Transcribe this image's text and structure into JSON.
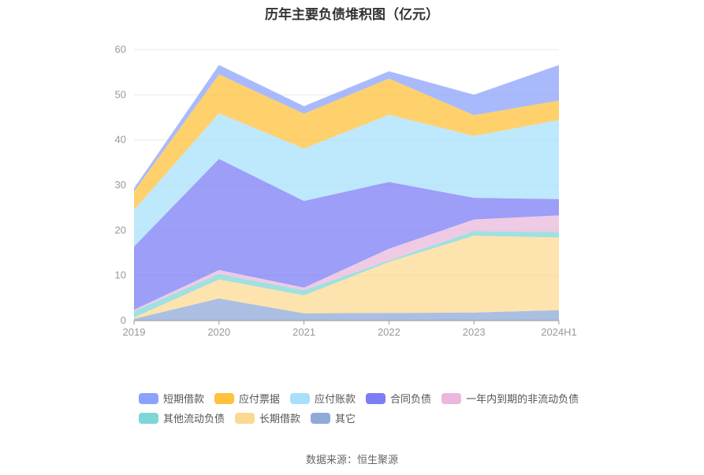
{
  "chart_data": {
    "type": "area",
    "stacked": true,
    "title": "历年主要负债堆积图（亿元）",
    "categories": [
      "2019",
      "2020",
      "2021",
      "2022",
      "2023",
      "2024H1"
    ],
    "ylim": [
      0,
      60
    ],
    "yticks": [
      0,
      10,
      20,
      30,
      40,
      50,
      60
    ],
    "grid": true,
    "legend_position": "bottom",
    "series": [
      {
        "name": "其它",
        "color": "#8fa9d9",
        "values": [
          0.4,
          4.9,
          1.6,
          1.7,
          1.8,
          2.3
        ]
      },
      {
        "name": "长期借款",
        "color": "#fcd991",
        "values": [
          0.3,
          4.2,
          4.0,
          11.3,
          17.0,
          16.1
        ]
      },
      {
        "name": "其他流动负债",
        "color": "#7fd6d6",
        "values": [
          1.4,
          1.2,
          1.1,
          0.3,
          1.0,
          1.2
        ]
      },
      {
        "name": "一年内到期的非流动负债",
        "color": "#eab8dc",
        "values": [
          0.3,
          0.9,
          0.6,
          2.6,
          2.6,
          3.7
        ]
      },
      {
        "name": "合同负债",
        "color": "#7b7ef5",
        "values": [
          14.0,
          24.6,
          19.2,
          14.8,
          4.8,
          3.6
        ]
      },
      {
        "name": "应付账款",
        "color": "#a8e0fb",
        "values": [
          8.1,
          10.1,
          11.6,
          14.9,
          13.7,
          17.5
        ]
      },
      {
        "name": "应付票据",
        "color": "#ffc23c",
        "values": [
          4.1,
          8.6,
          7.7,
          8.0,
          4.6,
          4.3
        ]
      },
      {
        "name": "短期借款",
        "color": "#8ca3fb",
        "values": [
          0.7,
          2.1,
          1.7,
          1.6,
          4.5,
          7.9
        ]
      }
    ],
    "legend_order": [
      "短期借款",
      "应付票据",
      "应付账款",
      "合同负债",
      "一年内到期的非流动负债",
      "其他流动负债",
      "长期借款",
      "其它"
    ]
  },
  "source": "数据来源：恒生聚源"
}
